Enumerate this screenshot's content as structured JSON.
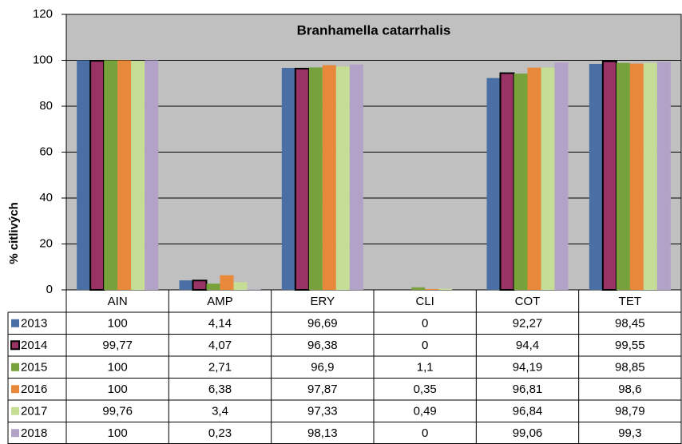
{
  "chart_data": {
    "type": "bar",
    "title": "Branhamella catarrhalis",
    "ylabel": "% citlivých",
    "categories": [
      "AIN",
      "AMP",
      "ERY",
      "CLI",
      "COT",
      "TET"
    ],
    "ylim": [
      0,
      120
    ],
    "yticks": [
      0,
      20,
      40,
      60,
      80,
      100,
      120
    ],
    "grid": true,
    "background": "#c0c0c0",
    "series": [
      {
        "name": "2013",
        "color": "#4a6fa5",
        "values": [
          100,
          4.14,
          96.69,
          0,
          92.27,
          98.45
        ],
        "value_labels": [
          "100",
          "4,14",
          "96,69",
          "0",
          "92,27",
          "98,45"
        ]
      },
      {
        "name": "2014",
        "color": "#993366",
        "edgecolor": "#000000",
        "values": [
          99.77,
          4.07,
          96.38,
          0,
          94.4,
          99.55
        ],
        "value_labels": [
          "99,77",
          "4,07",
          "96,38",
          "0",
          "94,4",
          "99,55"
        ]
      },
      {
        "name": "2015",
        "color": "#77a23b",
        "values": [
          100,
          2.71,
          96.9,
          1.1,
          94.19,
          98.85
        ],
        "value_labels": [
          "100",
          "2,71",
          "96,9",
          "1,1",
          "94,19",
          "98,85"
        ]
      },
      {
        "name": "2016",
        "color": "#e8883a",
        "values": [
          100,
          6.38,
          97.87,
          0.35,
          96.81,
          98.6
        ],
        "value_labels": [
          "100",
          "6,38",
          "97,87",
          "0,35",
          "96,81",
          "98,6"
        ]
      },
      {
        "name": "2017",
        "color": "#c5dd95",
        "values": [
          99.76,
          3.4,
          97.33,
          0.49,
          96.84,
          98.79
        ],
        "value_labels": [
          "99,76",
          "3,4",
          "97,33",
          "0,49",
          "96,84",
          "98,79"
        ]
      },
      {
        "name": "2018",
        "color": "#b3a2c7",
        "values": [
          100,
          0.23,
          98.13,
          0,
          99.06,
          99.3
        ],
        "value_labels": [
          "100",
          "0,23",
          "98,13",
          "0",
          "99,06",
          "99,3"
        ]
      }
    ]
  }
}
